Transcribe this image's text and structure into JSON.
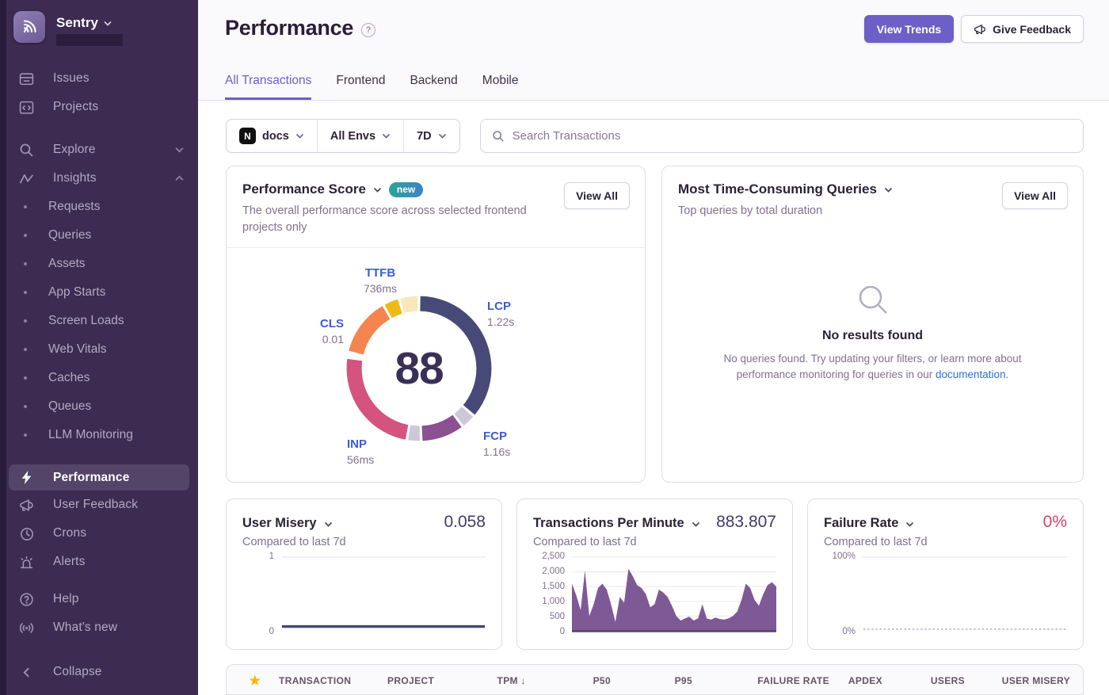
{
  "colors": {
    "accent": "#6C5FC7",
    "sidebar_bg": "#3d2b52",
    "link_blue": "#2f6fe0",
    "vital_label_blue": "#3b5bdb",
    "failure_pink": "#d4426e"
  },
  "icons": {
    "help_glyph": "?",
    "star_glyph": "★",
    "sort_desc_glyph": "↓",
    "project_platform_glyph": "N"
  },
  "sidebar": {
    "workspace_label": "Sentry",
    "primary": [
      {
        "label": "Issues"
      },
      {
        "label": "Projects"
      }
    ],
    "explore": {
      "label": "Explore"
    },
    "insights": {
      "label": "Insights"
    },
    "insights_children": [
      {
        "label": "Requests"
      },
      {
        "label": "Queries"
      },
      {
        "label": "Assets"
      },
      {
        "label": "App Starts"
      },
      {
        "label": "Screen Loads"
      },
      {
        "label": "Web Vitals"
      },
      {
        "label": "Caches"
      },
      {
        "label": "Queues"
      },
      {
        "label": "LLM Monitoring"
      }
    ],
    "tools": [
      {
        "label": "Performance",
        "active": true
      },
      {
        "label": "User Feedback"
      },
      {
        "label": "Crons"
      },
      {
        "label": "Alerts"
      }
    ],
    "support": [
      {
        "label": "Help"
      },
      {
        "label": "What's new"
      }
    ],
    "collapse_label": "Collapse"
  },
  "header": {
    "title": "Performance",
    "actions": {
      "view_trends": "View Trends",
      "give_feedback": "Give Feedback"
    },
    "tabs": [
      {
        "label": "All Transactions",
        "active": true
      },
      {
        "label": "Frontend",
        "active": false
      },
      {
        "label": "Backend",
        "active": false
      },
      {
        "label": "Mobile",
        "active": false
      }
    ]
  },
  "filters": {
    "project": {
      "value": "docs",
      "platform": "nextjs"
    },
    "environment": {
      "value": "All Envs"
    },
    "date_range": {
      "value": "7D"
    },
    "search": {
      "placeholder": "Search Transactions"
    }
  },
  "cards": {
    "performance_score": {
      "title": "Performance Score",
      "badge": "new",
      "description": "The overall performance score across selected frontend projects only",
      "view_all_label": "View All",
      "score": "88",
      "vitals": [
        {
          "name": "TTFB",
          "value": "736ms"
        },
        {
          "name": "LCP",
          "value": "1.22s"
        },
        {
          "name": "CLS",
          "value": "0.01"
        },
        {
          "name": "INP",
          "value": "56ms"
        },
        {
          "name": "FCP",
          "value": "1.16s"
        }
      ]
    },
    "queries": {
      "title": "Most Time-Consuming Queries",
      "description": "Top queries by total duration",
      "view_all_label": "View All",
      "empty": {
        "heading": "No results found",
        "body": "No queries found. Try updating your filters, or learn more about performance monitoring for queries in our ",
        "link_text": "documentation",
        "suffix": "."
      }
    },
    "user_misery": {
      "title": "User Misery",
      "subtitle": "Compared to last 7d",
      "value": "0.058"
    },
    "tpm": {
      "title": "Transactions Per Minute",
      "subtitle": "Compared to last 7d",
      "value": "883.807"
    },
    "failure_rate": {
      "title": "Failure Rate",
      "subtitle": "Compared to last 7d",
      "value": "0%"
    }
  },
  "table": {
    "sort_column": "TPM",
    "sort_direction": "desc",
    "columns": [
      "TRANSACTION",
      "PROJECT",
      "TPM",
      "P50",
      "P95",
      "FAILURE RATE",
      "APDEX",
      "USERS",
      "USER MISERY"
    ]
  },
  "chart_data": [
    {
      "type": "pie",
      "title": "Performance Score",
      "center_value": 88,
      "segments": [
        {
          "label": "LCP",
          "value": "1.22s",
          "frac": 0.363,
          "color": "#474a77"
        },
        {
          "label": "",
          "value": "",
          "frac": 0.034,
          "color": "#cdc7d9"
        },
        {
          "label": "FCP",
          "value": "1.16s",
          "frac": 0.098,
          "color": "#8b5193"
        },
        {
          "label": "",
          "value": "",
          "frac": 0.032,
          "color": "#cdc7d9"
        },
        {
          "label": "INP",
          "value": "56ms",
          "frac": 0.247,
          "color": "#d5537f"
        },
        {
          "label": "",
          "value": "",
          "frac": 0.012,
          "color": "#ffffff"
        },
        {
          "label": "CLS",
          "value": "0.01",
          "frac": 0.132,
          "color": "#f4854f"
        },
        {
          "label": "TTFB",
          "value": "736ms",
          "frac": 0.037,
          "color": "#eebb16"
        },
        {
          "label": "TTFB",
          "value": "736ms",
          "frac": 0.045,
          "color": "#f9e8bb"
        }
      ]
    },
    {
      "type": "line",
      "title": "User Misery",
      "value": 0.058,
      "ylim": [
        0,
        1
      ],
      "ytick_labels": [
        "1",
        "0"
      ],
      "series_color": "#444674",
      "points": [
        [
          0,
          0.058
        ],
        [
          1,
          0.058
        ]
      ]
    },
    {
      "type": "area",
      "title": "Transactions Per Minute",
      "value": 883.807,
      "ylim": [
        0,
        2500
      ],
      "ytick_labels": [
        "2,500",
        "2,000",
        "1,500",
        "1,000",
        "500",
        "0"
      ],
      "series_color": "#7a5292",
      "y": [
        1600,
        1200,
        700,
        2050,
        500,
        900,
        1450,
        1600,
        1400,
        900,
        300,
        1150,
        950,
        2100,
        1850,
        1550,
        1450,
        1250,
        800,
        900,
        1400,
        1300,
        1150,
        850,
        500,
        350,
        420,
        480,
        350,
        420,
        900,
        420,
        380,
        450,
        400,
        380,
        420,
        500,
        650,
        1050,
        1600,
        1450,
        1050,
        850,
        1250,
        1550,
        1650,
        1500
      ]
    },
    {
      "type": "line",
      "title": "Failure Rate",
      "value": "0%",
      "ylim": [
        0,
        100
      ],
      "ytick_labels": [
        "100%",
        "0%"
      ],
      "series_color": "#c9c2d4",
      "points": [
        [
          0,
          0
        ],
        [
          1,
          0
        ]
      ]
    }
  ]
}
